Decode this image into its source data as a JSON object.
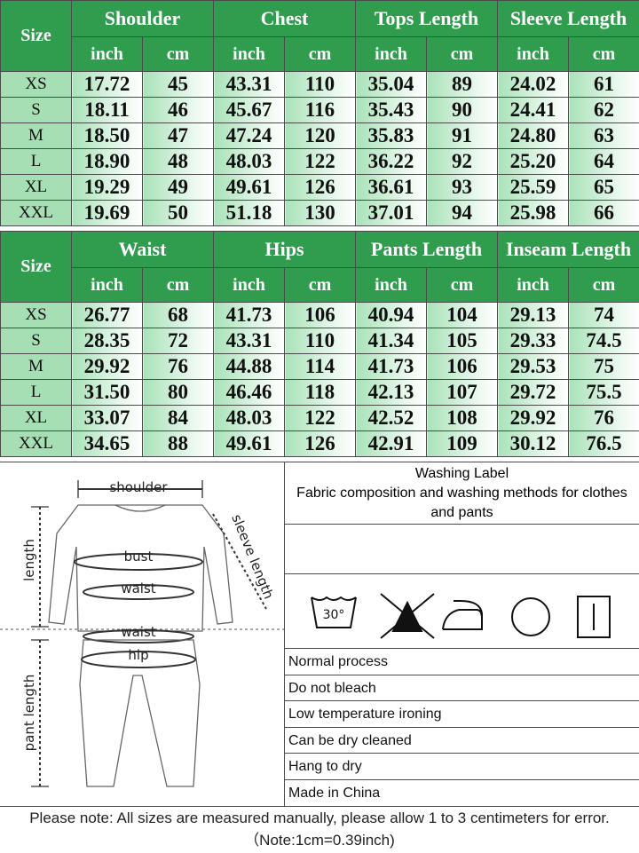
{
  "tables": [
    {
      "size_header": "Size",
      "groups": [
        {
          "name": "Shoulder",
          "units": [
            "inch",
            "cm"
          ]
        },
        {
          "name": "Chest",
          "units": [
            "inch",
            "cm"
          ]
        },
        {
          "name": "Tops Length",
          "units": [
            "inch",
            "cm"
          ]
        },
        {
          "name": "Sleeve Length",
          "units": [
            "inch",
            "cm"
          ]
        }
      ],
      "rows": [
        [
          "XS",
          "17.72",
          "45",
          "43.31",
          "110",
          "35.04",
          "89",
          "24.02",
          "61"
        ],
        [
          "S",
          "18.11",
          "46",
          "45.67",
          "116",
          "35.43",
          "90",
          "24.41",
          "62"
        ],
        [
          "M",
          "18.50",
          "47",
          "47.24",
          "120",
          "35.83",
          "91",
          "24.80",
          "63"
        ],
        [
          "L",
          "18.90",
          "48",
          "48.03",
          "122",
          "36.22",
          "92",
          "25.20",
          "64"
        ],
        [
          "XL",
          "19.29",
          "49",
          "49.61",
          "126",
          "36.61",
          "93",
          "25.59",
          "65"
        ],
        [
          "XXL",
          "19.69",
          "50",
          "51.18",
          "130",
          "37.01",
          "94",
          "25.98",
          "66"
        ]
      ]
    },
    {
      "size_header": "Size",
      "groups": [
        {
          "name": "Waist",
          "units": [
            "inch",
            "cm"
          ]
        },
        {
          "name": "Hips",
          "units": [
            "inch",
            "cm"
          ]
        },
        {
          "name": "Pants Length",
          "units": [
            "inch",
            "cm"
          ]
        },
        {
          "name": "Inseam Length",
          "units": [
            "inch",
            "cm"
          ]
        }
      ],
      "rows": [
        [
          "XS",
          "26.77",
          "68",
          "41.73",
          "106",
          "40.94",
          "104",
          "29.13",
          "74"
        ],
        [
          "S",
          "28.35",
          "72",
          "43.31",
          "110",
          "41.34",
          "105",
          "29.33",
          "74.5"
        ],
        [
          "M",
          "29.92",
          "76",
          "44.88",
          "114",
          "41.73",
          "106",
          "29.53",
          "75"
        ],
        [
          "L",
          "31.50",
          "80",
          "46.46",
          "118",
          "42.13",
          "107",
          "29.72",
          "75.5"
        ],
        [
          "XL",
          "33.07",
          "84",
          "48.03",
          "122",
          "42.52",
          "108",
          "29.92",
          "76"
        ],
        [
          "XXL",
          "34.65",
          "88",
          "49.61",
          "126",
          "42.91",
          "109",
          "30.12",
          "76.5"
        ]
      ]
    }
  ],
  "diagram": {
    "shoulder": "shoulder",
    "length": "length",
    "sleeve_length": "sleeve length",
    "bust": "bust",
    "top_waist": "waist",
    "pant_waist": "waist",
    "hip": "hip",
    "pant_length": "pant length"
  },
  "washing_label": {
    "title": "Washing Label",
    "subtitle": "Fabric composition and washing methods for clothes and pants",
    "wash_temp": "30°",
    "items": [
      "Normal process",
      "Do not bleach",
      "Low temperature ironing",
      "Can be dry cleaned",
      "Hang to dry",
      "Made in China"
    ]
  },
  "footer": "Please note: All sizes are measured manually, please allow 1 to 3 centimeters for error.（Note:1cm=0.39inch)"
}
